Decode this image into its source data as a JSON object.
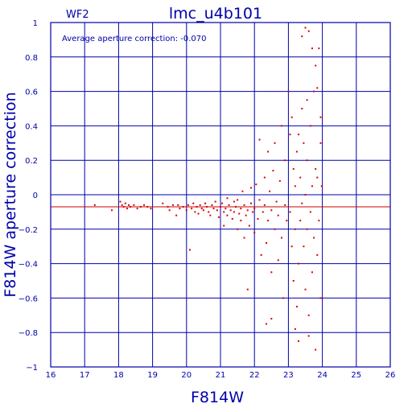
{
  "chart_data": {
    "type": "scatter",
    "title": "lmc_u4b101",
    "chip_label": "WF2",
    "annotation": "Average aperture correction: -0.070",
    "xlabel": "F814W",
    "ylabel": "F814W aperture correction",
    "xlim": [
      16,
      26
    ],
    "ylim": [
      -1,
      1
    ],
    "xticks": [
      16,
      17,
      18,
      19,
      20,
      21,
      22,
      23,
      24,
      25,
      26
    ],
    "yticks": [
      -1,
      -0.8,
      -0.6,
      -0.4,
      -0.2,
      0,
      0.2,
      0.4,
      0.6,
      0.8,
      1
    ],
    "grid": true,
    "reference_line_y": -0.07,
    "colors": {
      "axis": "#0000aa",
      "points": "#dd0000",
      "reference_line": "#cc0000",
      "background": "#ffffff"
    },
    "points": [
      [
        17.3,
        -0.06
      ],
      [
        17.8,
        -0.09
      ],
      [
        18.05,
        -0.04
      ],
      [
        18.1,
        -0.06
      ],
      [
        18.15,
        -0.07
      ],
      [
        18.2,
        -0.05
      ],
      [
        18.25,
        -0.08
      ],
      [
        18.3,
        -0.06
      ],
      [
        18.35,
        -0.07
      ],
      [
        18.45,
        -0.06
      ],
      [
        18.55,
        -0.08
      ],
      [
        18.65,
        -0.07
      ],
      [
        18.75,
        -0.06
      ],
      [
        18.85,
        -0.07
      ],
      [
        18.95,
        -0.08
      ],
      [
        19.3,
        -0.05
      ],
      [
        19.45,
        -0.07
      ],
      [
        19.5,
        -0.09
      ],
      [
        19.6,
        -0.06
      ],
      [
        19.7,
        -0.12
      ],
      [
        19.75,
        -0.06
      ],
      [
        19.8,
        -0.08
      ],
      [
        19.9,
        -0.07
      ],
      [
        20.0,
        -0.09
      ],
      [
        20.05,
        -0.06
      ],
      [
        20.1,
        -0.32
      ],
      [
        20.15,
        -0.08
      ],
      [
        20.2,
        -0.05
      ],
      [
        20.25,
        -0.1
      ],
      [
        20.3,
        -0.07
      ],
      [
        20.35,
        -0.11
      ],
      [
        20.4,
        -0.06
      ],
      [
        20.45,
        -0.08
      ],
      [
        20.5,
        -0.09
      ],
      [
        20.55,
        -0.05
      ],
      [
        20.6,
        -0.07
      ],
      [
        20.65,
        -0.1
      ],
      [
        20.7,
        -0.12
      ],
      [
        20.75,
        -0.06
      ],
      [
        20.8,
        -0.08
      ],
      [
        20.85,
        -0.04
      ],
      [
        20.9,
        -0.09
      ],
      [
        20.95,
        -0.13
      ],
      [
        21.0,
        -0.07
      ],
      [
        21.05,
        -0.05
      ],
      [
        21.1,
        -0.1
      ],
      [
        21.1,
        -0.18
      ],
      [
        21.15,
        -0.08
      ],
      [
        21.2,
        -0.02
      ],
      [
        21.2,
        -0.12
      ],
      [
        21.25,
        -0.06
      ],
      [
        21.3,
        -0.09
      ],
      [
        21.35,
        -0.14
      ],
      [
        21.4,
        -0.04
      ],
      [
        21.4,
        -0.1
      ],
      [
        21.45,
        -0.07
      ],
      [
        21.5,
        -0.2
      ],
      [
        21.5,
        -0.03
      ],
      [
        21.55,
        -0.11
      ],
      [
        21.6,
        -0.08
      ],
      [
        21.6,
        -0.15
      ],
      [
        21.65,
        0.02
      ],
      [
        21.7,
        -0.06
      ],
      [
        21.7,
        -0.25
      ],
      [
        21.75,
        -0.12
      ],
      [
        21.8,
        -0.09
      ],
      [
        21.8,
        -0.55
      ],
      [
        21.85,
        -0.18
      ],
      [
        21.9,
        0.04
      ],
      [
        21.9,
        -0.05
      ],
      [
        21.95,
        -0.1
      ],
      [
        22.0,
        -0.22
      ],
      [
        22.0,
        -0.08
      ],
      [
        22.05,
        0.06
      ],
      [
        22.1,
        -0.14
      ],
      [
        22.15,
        -0.03
      ],
      [
        22.2,
        -0.35
      ],
      [
        22.25,
        -0.1
      ],
      [
        22.3,
        0.1
      ],
      [
        22.3,
        -0.06
      ],
      [
        22.35,
        -0.28
      ],
      [
        22.4,
        -0.15
      ],
      [
        22.45,
        0.02
      ],
      [
        22.5,
        -0.45
      ],
      [
        22.5,
        -0.09
      ],
      [
        22.55,
        0.14
      ],
      [
        22.6,
        -0.2
      ],
      [
        22.65,
        -0.04
      ],
      [
        22.7,
        -0.12
      ],
      [
        22.7,
        -0.38
      ],
      [
        22.75,
        0.08
      ],
      [
        22.8,
        -0.25
      ],
      [
        22.85,
        -0.6
      ],
      [
        22.9,
        0.2
      ],
      [
        22.9,
        -0.06
      ],
      [
        22.95,
        -0.15
      ],
      [
        22.35,
        -0.75
      ],
      [
        22.5,
        -0.72
      ],
      [
        22.15,
        0.32
      ],
      [
        22.4,
        0.25
      ],
      [
        22.6,
        0.3
      ],
      [
        22.8,
        0.4
      ],
      [
        23.0,
        0.6
      ],
      [
        23.05,
        0.35
      ],
      [
        23.05,
        -0.1
      ],
      [
        23.1,
        -0.3
      ],
      [
        23.1,
        0.45
      ],
      [
        23.15,
        -0.5
      ],
      [
        23.15,
        0.15
      ],
      [
        23.2,
        -0.2
      ],
      [
        23.2,
        0.05
      ],
      [
        23.25,
        -0.65
      ],
      [
        23.25,
        0.25
      ],
      [
        23.3,
        -0.4
      ],
      [
        23.3,
        -0.85
      ],
      [
        23.35,
        0.1
      ],
      [
        23.35,
        -0.15
      ],
      [
        23.4,
        0.5
      ],
      [
        23.4,
        -0.05
      ],
      [
        23.45,
        -0.3
      ],
      [
        23.45,
        0.3
      ],
      [
        23.5,
        -0.55
      ],
      [
        23.5,
        0.0
      ],
      [
        23.55,
        0.2
      ],
      [
        23.55,
        -0.2
      ],
      [
        23.6,
        0.95
      ],
      [
        23.6,
        -0.7
      ],
      [
        23.65,
        0.4
      ],
      [
        23.65,
        -0.1
      ],
      [
        23.7,
        0.05
      ],
      [
        23.7,
        -0.45
      ],
      [
        23.75,
        0.6
      ],
      [
        23.75,
        -0.25
      ],
      [
        23.8,
        0.15
      ],
      [
        23.8,
        0.75
      ],
      [
        23.85,
        -0.35
      ],
      [
        23.85,
        0.1
      ],
      [
        23.9,
        0.85
      ],
      [
        23.9,
        -0.15
      ],
      [
        23.95,
        0.3
      ],
      [
        23.95,
        -0.6
      ],
      [
        23.98,
        0.05
      ],
      [
        23.4,
        0.92
      ],
      [
        23.5,
        0.97
      ],
      [
        23.7,
        0.85
      ],
      [
        23.95,
        0.45
      ],
      [
        23.2,
        -0.78
      ],
      [
        23.6,
        -0.82
      ],
      [
        23.8,
        -0.9
      ],
      [
        23.3,
        0.35
      ],
      [
        23.55,
        0.55
      ],
      [
        23.85,
        0.62
      ]
    ]
  }
}
